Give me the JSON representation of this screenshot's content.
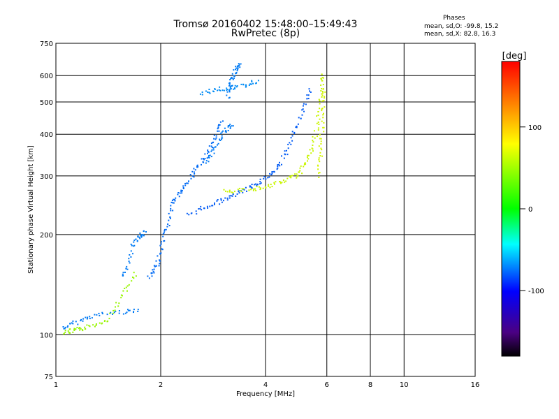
{
  "header": {
    "title_line1": "Tromsø 20160402 15:48:00–15:49:43",
    "title_line2": "RwPretec (8p)"
  },
  "phase_box": {
    "heading": "Phases",
    "o_line": "mean, sd,O: -99.8, 15.2",
    "x_line": "mean, sd,X: 82.8, 16.3"
  },
  "colorbar": {
    "unit_label": "[deg]",
    "tick_labels": [
      "100",
      "0",
      "-100"
    ],
    "tick_values": [
      100,
      0,
      -100
    ],
    "range": [
      -180,
      180
    ]
  },
  "chart_data": {
    "type": "scatter",
    "xlabel": "Frequency [MHz]",
    "ylabel": "Stationary phase Virtual Height [km]",
    "x_scale": "log",
    "y_scale": "log",
    "xlim": [
      1,
      16
    ],
    "ylim": [
      75,
      750
    ],
    "grid": true,
    "x_ticks": [
      1,
      2,
      4,
      6,
      8,
      10,
      16
    ],
    "x_tick_labels": [
      "1",
      "2",
      "4",
      "6",
      "8",
      "10",
      "16"
    ],
    "y_ticks": [
      75,
      100,
      200,
      300,
      400,
      500,
      600,
      750
    ],
    "y_tick_labels": [
      "75",
      "100",
      "200",
      "300",
      "400",
      "500",
      "600",
      "750"
    ],
    "color_variable": "phase [deg]",
    "traces": [
      {
        "mode": "O",
        "phase": -100,
        "points": [
          [
            1.05,
            105
          ],
          [
            1.1,
            108
          ],
          [
            1.2,
            112
          ],
          [
            1.3,
            115
          ],
          [
            1.45,
            117
          ],
          [
            1.6,
            118
          ],
          [
            1.75,
            120
          ]
        ]
      },
      {
        "mode": "O",
        "phase": 70,
        "points": [
          [
            1.05,
            102
          ],
          [
            1.1,
            103
          ],
          [
            1.15,
            104
          ],
          [
            1.2,
            105
          ],
          [
            1.3,
            108
          ],
          [
            1.4,
            112
          ],
          [
            1.5,
            125
          ],
          [
            1.6,
            140
          ],
          [
            1.7,
            155
          ]
        ]
      },
      {
        "mode": "O",
        "phase": -100,
        "points": [
          [
            1.55,
            150
          ],
          [
            1.6,
            160
          ],
          [
            1.65,
            185
          ],
          [
            1.7,
            195
          ],
          [
            1.75,
            200
          ],
          [
            1.8,
            205
          ]
        ]
      },
      {
        "mode": "O",
        "phase": -105,
        "points": [
          [
            1.85,
            150
          ],
          [
            1.9,
            155
          ],
          [
            1.95,
            165
          ],
          [
            2.0,
            180
          ],
          [
            2.05,
            200
          ],
          [
            2.1,
            220
          ],
          [
            2.15,
            245
          ],
          [
            2.2,
            260
          ],
          [
            2.3,
            275
          ],
          [
            2.4,
            290
          ],
          [
            2.5,
            310
          ],
          [
            2.6,
            330
          ],
          [
            2.7,
            350
          ],
          [
            2.8,
            380
          ],
          [
            2.9,
            410
          ],
          [
            3.0,
            440
          ]
        ]
      },
      {
        "mode": "O",
        "phase": -110,
        "points": [
          [
            2.4,
            230
          ],
          [
            2.6,
            240
          ],
          [
            2.8,
            248
          ],
          [
            3.0,
            255
          ],
          [
            3.2,
            262
          ],
          [
            3.4,
            270
          ],
          [
            3.6,
            278
          ],
          [
            3.8,
            288
          ],
          [
            4.0,
            298
          ],
          [
            4.2,
            310
          ],
          [
            4.4,
            330
          ],
          [
            4.6,
            360
          ],
          [
            4.8,
            400
          ],
          [
            5.0,
            450
          ],
          [
            5.2,
            500
          ],
          [
            5.4,
            560
          ]
        ]
      },
      {
        "mode": "O",
        "phase": -95,
        "points": [
          [
            2.6,
            530
          ],
          [
            2.8,
            545
          ],
          [
            3.0,
            550
          ],
          [
            3.2,
            555
          ],
          [
            3.4,
            560
          ],
          [
            3.6,
            570
          ],
          [
            3.8,
            580
          ]
        ]
      },
      {
        "mode": "O",
        "phase": -100,
        "points": [
          [
            3.1,
            520
          ],
          [
            3.15,
            560
          ],
          [
            3.2,
            590
          ],
          [
            3.25,
            620
          ],
          [
            3.3,
            640
          ],
          [
            3.35,
            650
          ]
        ]
      },
      {
        "mode": "O",
        "phase": -100,
        "points": [
          [
            2.7,
            330
          ],
          [
            2.8,
            350
          ],
          [
            2.9,
            380
          ],
          [
            3.0,
            400
          ],
          [
            3.1,
            420
          ],
          [
            3.2,
            430
          ]
        ]
      },
      {
        "mode": "X",
        "phase": 85,
        "points": [
          [
            3.0,
            270
          ],
          [
            3.3,
            272
          ],
          [
            3.6,
            275
          ],
          [
            3.9,
            278
          ],
          [
            4.2,
            283
          ],
          [
            4.5,
            290
          ],
          [
            4.8,
            300
          ],
          [
            5.0,
            310
          ],
          [
            5.2,
            330
          ],
          [
            5.4,
            360
          ],
          [
            5.55,
            400
          ],
          [
            5.65,
            450
          ],
          [
            5.75,
            520
          ],
          [
            5.8,
            580
          ],
          [
            5.85,
            610
          ]
        ]
      },
      {
        "mode": "X",
        "phase": 90,
        "points": [
          [
            5.6,
            300
          ],
          [
            5.7,
            340
          ],
          [
            5.75,
            380
          ],
          [
            5.8,
            440
          ],
          [
            5.85,
            500
          ],
          [
            5.9,
            560
          ]
        ]
      }
    ]
  }
}
